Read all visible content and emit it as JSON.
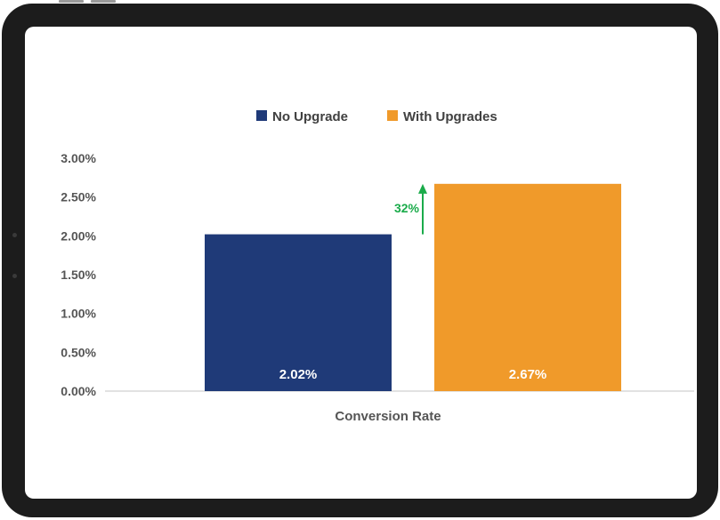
{
  "chart_data": {
    "type": "bar",
    "categories": [
      "Conversion Rate"
    ],
    "series": [
      {
        "name": "No Upgrade",
        "values": [
          2.02
        ],
        "label": "2.02%",
        "color": "#1f3a78"
      },
      {
        "name": "With Upgrades",
        "values": [
          2.67
        ],
        "label": "2.67%",
        "color": "#f09a2a"
      }
    ],
    "ylim": [
      0,
      3
    ],
    "yticks": [
      "0.00%",
      "0.50%",
      "1.00%",
      "1.50%",
      "2.00%",
      "2.50%",
      "3.00%"
    ],
    "ytick_values": [
      0,
      0.5,
      1,
      1.5,
      2,
      2.5,
      3
    ],
    "grid": false,
    "legend_position": "top-center",
    "annotation": {
      "text": "32%",
      "color": "#1aab4a"
    }
  }
}
